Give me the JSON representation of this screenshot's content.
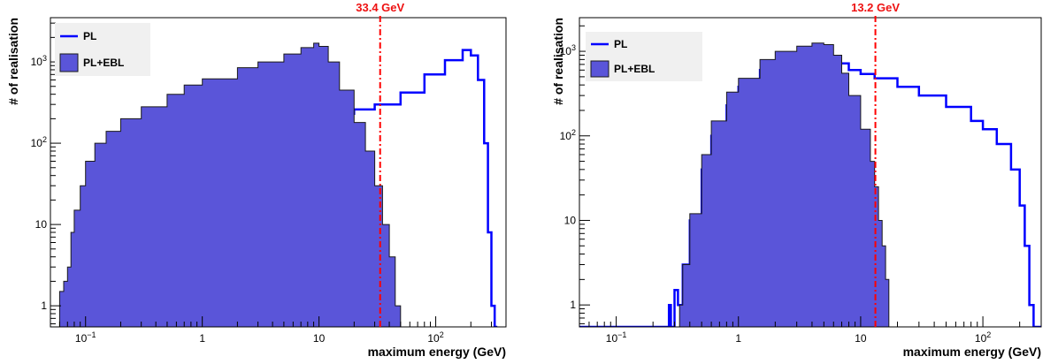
{
  "colors": {
    "pl_line": "#0000ff",
    "ebl_fill": "#5a55d9",
    "ebl_edge": "#1a1a1a",
    "cut_line": "#ff0000",
    "cut_text": "#ee1111",
    "legend_bg": "#f0f0f0"
  },
  "chart_data": [
    {
      "type": "area",
      "ylabel": "# of realisation",
      "xlabel": "maximum energy (GeV)",
      "x_scale": "log",
      "y_scale": "log",
      "xlim": [
        0.05,
        400
      ],
      "ylim": [
        0.55,
        3500
      ],
      "x_ticks": [
        {
          "value": 0.1,
          "base": "10",
          "exp": "−1"
        },
        {
          "value": 1,
          "label": "1"
        },
        {
          "value": 10,
          "label": "10"
        },
        {
          "value": 100,
          "base": "10",
          "exp": "2"
        }
      ],
      "y_ticks": [
        {
          "value": 1,
          "label": "1"
        },
        {
          "value": 10,
          "label": "10"
        },
        {
          "value": 100,
          "base": "10",
          "exp": "2"
        },
        {
          "value": 1000,
          "base": "10",
          "exp": "3"
        }
      ],
      "cut_line": {
        "value": 33.4,
        "label": "33.4 GeV"
      },
      "legend": {
        "placement": "top-left",
        "entries": [
          "PL",
          "PL+EBL"
        ]
      },
      "series": [
        {
          "name": "PL",
          "style": "step-line",
          "points": [
            [
              0.078,
              0.5
            ],
            [
              0.08,
              1
            ],
            [
              0.085,
              2
            ],
            [
              0.09,
              1.5
            ],
            [
              0.1,
              2.5
            ],
            [
              0.11,
              2
            ],
            [
              0.12,
              3
            ],
            [
              0.13,
              4
            ],
            [
              0.15,
              5
            ],
            [
              0.17,
              6
            ],
            [
              0.2,
              9
            ],
            [
              0.25,
              13
            ],
            [
              0.3,
              18
            ],
            [
              0.4,
              25
            ],
            [
              0.5,
              38
            ],
            [
              0.7,
              52
            ],
            [
              1.0,
              70
            ],
            [
              1.5,
              95
            ],
            [
              2.0,
              115
            ],
            [
              3.0,
              140
            ],
            [
              5.0,
              150
            ],
            [
              8.0,
              160
            ],
            [
              10.0,
              190
            ],
            [
              15.0,
              230
            ],
            [
              20.0,
              260
            ],
            [
              30.0,
              300
            ],
            [
              50.0,
              420
            ],
            [
              80.0,
              700
            ],
            [
              120.0,
              1050
            ],
            [
              170.0,
              1400
            ],
            [
              200.0,
              1200
            ],
            [
              230.0,
              600
            ],
            [
              260.0,
              100
            ],
            [
              280.0,
              8
            ],
            [
              300.0,
              1
            ],
            [
              320.0,
              0.5
            ]
          ]
        },
        {
          "name": "PL+EBL",
          "style": "filled-histogram",
          "points": [
            [
              0.06,
              1.5
            ],
            [
              0.065,
              2
            ],
            [
              0.07,
              3
            ],
            [
              0.075,
              8
            ],
            [
              0.08,
              15
            ],
            [
              0.09,
              30
            ],
            [
              0.1,
              60
            ],
            [
              0.12,
              100
            ],
            [
              0.15,
              140
            ],
            [
              0.2,
              200
            ],
            [
              0.3,
              280
            ],
            [
              0.5,
              400
            ],
            [
              0.7,
              520
            ],
            [
              1.0,
              620
            ],
            [
              2.0,
              850
            ],
            [
              3.0,
              1000
            ],
            [
              5.0,
              1250
            ],
            [
              7.0,
              1500
            ],
            [
              9.0,
              1700
            ],
            [
              10.0,
              1550
            ],
            [
              12.0,
              1000
            ],
            [
              15.0,
              450
            ],
            [
              20.0,
              180
            ],
            [
              25.0,
              80
            ],
            [
              30.0,
              30
            ],
            [
              35.0,
              10
            ],
            [
              40.0,
              4
            ],
            [
              45.0,
              1
            ],
            [
              50.0,
              0.5
            ]
          ]
        }
      ]
    },
    {
      "type": "area",
      "ylabel": "# of realisation",
      "xlabel": "maximum energy (GeV)",
      "x_scale": "log",
      "y_scale": "log",
      "xlim": [
        0.05,
        300
      ],
      "ylim": [
        0.55,
        2500
      ],
      "x_ticks": [
        {
          "value": 0.1,
          "base": "10",
          "exp": "−1"
        },
        {
          "value": 1,
          "label": "1"
        },
        {
          "value": 10,
          "label": "10"
        },
        {
          "value": 100,
          "base": "10",
          "exp": "2"
        }
      ],
      "y_ticks": [
        {
          "value": 1,
          "label": "1"
        },
        {
          "value": 10,
          "label": "10"
        },
        {
          "value": 100,
          "base": "10",
          "exp": "2"
        },
        {
          "value": 1000,
          "base": "10",
          "exp": "3"
        }
      ],
      "cut_line": {
        "value": 13.2,
        "label": "13.2 GeV"
      },
      "legend": {
        "placement": "top-left",
        "entries": [
          "PL",
          "PL+EBL"
        ]
      },
      "series": [
        {
          "name": "PL",
          "style": "step-line",
          "points": [
            [
              0.05,
              0.5
            ],
            [
              0.26,
              0.5
            ],
            [
              0.27,
              1
            ],
            [
              0.28,
              0.5
            ],
            [
              0.3,
              1.5
            ],
            [
              0.32,
              1
            ],
            [
              0.35,
              3
            ],
            [
              0.4,
              10
            ],
            [
              0.5,
              40
            ],
            [
              0.6,
              100
            ],
            [
              0.8,
              230
            ],
            [
              1.0,
              380
            ],
            [
              1.5,
              600
            ],
            [
              2.0,
              700
            ],
            [
              3.0,
              750
            ],
            [
              5.0,
              720
            ],
            [
              8.0,
              600
            ],
            [
              10.0,
              540
            ],
            [
              13.0,
              480
            ],
            [
              20.0,
              380
            ],
            [
              30.0,
              300
            ],
            [
              50.0,
              220
            ],
            [
              80.0,
              150
            ],
            [
              100.0,
              120
            ],
            [
              130.0,
              80
            ],
            [
              170.0,
              40
            ],
            [
              200.0,
              15
            ],
            [
              220.0,
              5
            ],
            [
              240.0,
              1
            ],
            [
              260.0,
              0.5
            ],
            [
              300.0,
              0.5
            ]
          ]
        },
        {
          "name": "PL+EBL",
          "style": "filled-histogram",
          "points": [
            [
              0.3,
              0.5
            ],
            [
              0.33,
              1
            ],
            [
              0.35,
              3
            ],
            [
              0.4,
              12
            ],
            [
              0.5,
              60
            ],
            [
              0.6,
              150
            ],
            [
              0.8,
              330
            ],
            [
              1.0,
              480
            ],
            [
              1.5,
              800
            ],
            [
              2.0,
              1000
            ],
            [
              3.0,
              1150
            ],
            [
              4.0,
              1250
            ],
            [
              5.0,
              1200
            ],
            [
              6.0,
              900
            ],
            [
              7.0,
              550
            ],
            [
              8.0,
              300
            ],
            [
              10.0,
              120
            ],
            [
              12.0,
              50
            ],
            [
              13.0,
              25
            ],
            [
              14.0,
              10
            ],
            [
              15.0,
              5
            ],
            [
              16.0,
              2
            ],
            [
              17.0,
              0.5
            ]
          ]
        }
      ]
    }
  ]
}
